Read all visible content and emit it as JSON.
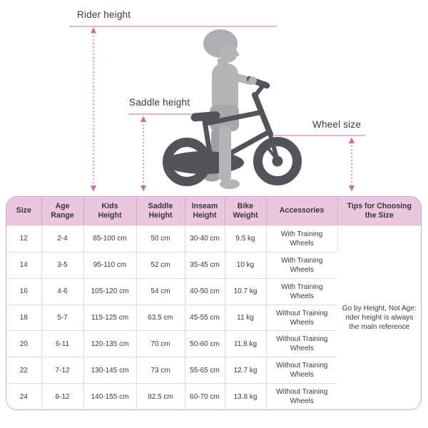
{
  "diagram": {
    "labels": {
      "rider_height": "Rider height",
      "saddle_height": "Saddle height",
      "wheel_size": "Wheel size"
    },
    "colors": {
      "measure_line": "#c98cb9",
      "arrow": "#c173ae",
      "child_silhouette": "#b6b4b7",
      "child_shade": "#a9a7ab",
      "bike_silhouette": "#56525a"
    }
  },
  "table": {
    "columns": [
      "Size",
      "Age Range",
      "Kids Height",
      "Saddle Height",
      "Inseam Height",
      "Bike Weight",
      "Accessories",
      "Tips for Choosing the Size"
    ],
    "rows": [
      [
        "12",
        "2-4",
        "85-100 cm",
        "50 cm",
        "30-40 cm",
        "9.5 kg",
        "With Training Wheels"
      ],
      [
        "14",
        "3-5",
        "95-110 cm",
        "52 cm",
        "35-45 cm",
        "10 kg",
        "With Training Wheels"
      ],
      [
        "16",
        "4-6",
        "105-120 cm",
        "54 cm",
        "40-50 cm",
        "10.7 kg",
        "With Training Wheels"
      ],
      [
        "18",
        "5-7",
        "115-125 cm",
        "63.5 cm",
        "45-55 cm",
        "11 kg",
        "Without Training Wheels"
      ],
      [
        "20",
        "6-11",
        "120-135 cm",
        "70 cm",
        "50-60 cm",
        "11.8 kg",
        "Without Training Wheels"
      ],
      [
        "22",
        "7-12",
        "130-145 cm",
        "73 cm",
        "55-65 cm",
        "12.7 kg",
        "Without Training Wheels"
      ],
      [
        "24",
        "8-12",
        "140-155 cm",
        "82.5 cm",
        "60-70 cm",
        "13.8 kg",
        "Without Training Wheels"
      ]
    ],
    "tips_text": "Go by Height, Not Age: rider height is always the main reference",
    "colors": {
      "header_bg": "#eac6df",
      "outer_border": "#d3a7c6",
      "grid_line": "#e8d8e2",
      "text": "#3b393c"
    }
  }
}
